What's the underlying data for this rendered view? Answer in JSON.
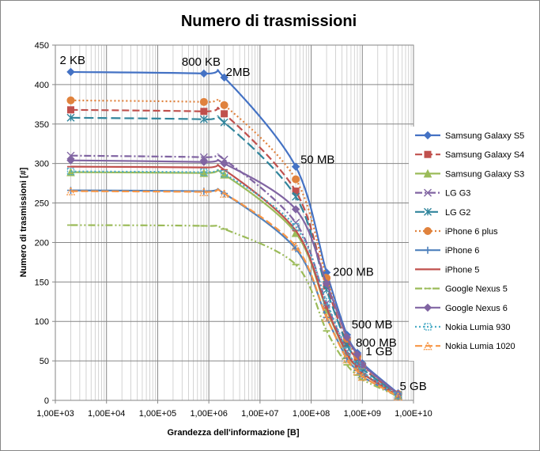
{
  "chart_data": {
    "type": "line",
    "title": "Numero di trasmissioni",
    "xlabel": "Grandezza dell'informazione  [B]",
    "ylabel": "Numero di trasmissioni [#]",
    "xscale": "log",
    "xlim": [
      1000,
      10000000000
    ],
    "ylim": [
      0,
      450
    ],
    "xticks": [
      {
        "value": 1000,
        "label": "1,00E+03"
      },
      {
        "value": 10000,
        "label": "1,00E+04"
      },
      {
        "value": 100000,
        "label": "1,00E+05"
      },
      {
        "value": 1000000,
        "label": "1,00E+06"
      },
      {
        "value": 10000000,
        "label": "1,00E+07"
      },
      {
        "value": 100000000,
        "label": "1,00E+08"
      },
      {
        "value": 1000000000,
        "label": "1,00E+09"
      },
      {
        "value": 10000000000,
        "label": "1,00E+10"
      }
    ],
    "yticks": [
      0,
      50,
      100,
      150,
      200,
      250,
      300,
      350,
      400,
      450
    ],
    "grid": true,
    "legend_position": "right",
    "x": [
      2000,
      800000,
      2000000,
      50000000,
      200000000,
      500000000,
      800000000,
      1000000000,
      5000000000
    ],
    "series": [
      {
        "name": "Samsung Galaxy S5",
        "color": "#4472C4",
        "dash": "solid",
        "marker": "diamond",
        "values": [
          416,
          414,
          409,
          296,
          162,
          83,
          60,
          47,
          9
        ]
      },
      {
        "name": "Samsung Galaxy S4",
        "color": "#C0504D",
        "dash": "dash",
        "marker": "square",
        "values": [
          368,
          366,
          363,
          265,
          145,
          72,
          52,
          41,
          7
        ]
      },
      {
        "name": "Samsung Galaxy S3",
        "color": "#9BBB59",
        "dash": "solid",
        "marker": "triangle",
        "values": [
          289,
          288,
          286,
          212,
          115,
          58,
          42,
          34,
          6
        ]
      },
      {
        "name": "LG G3",
        "color": "#8064A2",
        "dash": "dashdot",
        "marker": "x",
        "values": [
          310,
          308,
          305,
          225,
          123,
          62,
          45,
          36,
          6
        ]
      },
      {
        "name": "LG G2",
        "color": "#31859C",
        "dash": "longdash",
        "marker": "star",
        "values": [
          358,
          356,
          352,
          258,
          140,
          71,
          51,
          40,
          7
        ]
      },
      {
        "name": "iPhone 6 plus",
        "color": "#E0823D",
        "dash": "dot",
        "marker": "circle",
        "values": [
          380,
          378,
          374,
          280,
          155,
          78,
          56,
          44,
          8
        ]
      },
      {
        "name": "iPhone 6",
        "color": "#4F81BD",
        "dash": "solid",
        "marker": "plus",
        "values": [
          266,
          265,
          262,
          192,
          105,
          53,
          38,
          30,
          5
        ]
      },
      {
        "name": "iPhone 5",
        "color": "#C0504D",
        "dash": "solid",
        "marker": "dash",
        "values": [
          296,
          295,
          292,
          215,
          117,
          59,
          42,
          34,
          6
        ]
      },
      {
        "name": "Google Nexus 5",
        "color": "#9BBB59",
        "dash": "dashdotdot",
        "marker": "dash",
        "values": [
          222,
          221,
          217,
          172,
          88,
          45,
          32,
          26,
          5
        ]
      },
      {
        "name": "Google Nexus 6",
        "color": "#8064A2",
        "dash": "solid",
        "marker": "diamond",
        "values": [
          304,
          302,
          300,
          242,
          148,
          80,
          58,
          45,
          8
        ]
      },
      {
        "name": "Nokia Lumia 930",
        "color": "#4BACC6",
        "dash": "dot",
        "marker": "square-open",
        "values": [
          290,
          289,
          287,
          220,
          125,
          63,
          45,
          36,
          6
        ]
      },
      {
        "name": "Nokia Lumia 1020",
        "color": "#F79646",
        "dash": "dash",
        "marker": "triangle-open",
        "values": [
          265,
          264,
          262,
          195,
          105,
          52,
          37,
          30,
          5
        ]
      }
    ],
    "annotations": [
      {
        "text": "2 KB",
        "x": 2000,
        "y": 416
      },
      {
        "text": "800 KB",
        "x": 800000,
        "y": 414
      },
      {
        "text": "2MB",
        "x": 2000000,
        "y": 409
      },
      {
        "text": "50 MB",
        "x": 50000000,
        "y": 296
      },
      {
        "text": "200 MB",
        "x": 200000000,
        "y": 162
      },
      {
        "text": "500 MB",
        "x": 500000000,
        "y": 83
      },
      {
        "text": "800 MB",
        "x": 800000000,
        "y": 60
      },
      {
        "text": "1 GB",
        "x": 1000000000,
        "y": 47
      },
      {
        "text": "5 GB",
        "x": 5000000000,
        "y": 9
      }
    ]
  }
}
